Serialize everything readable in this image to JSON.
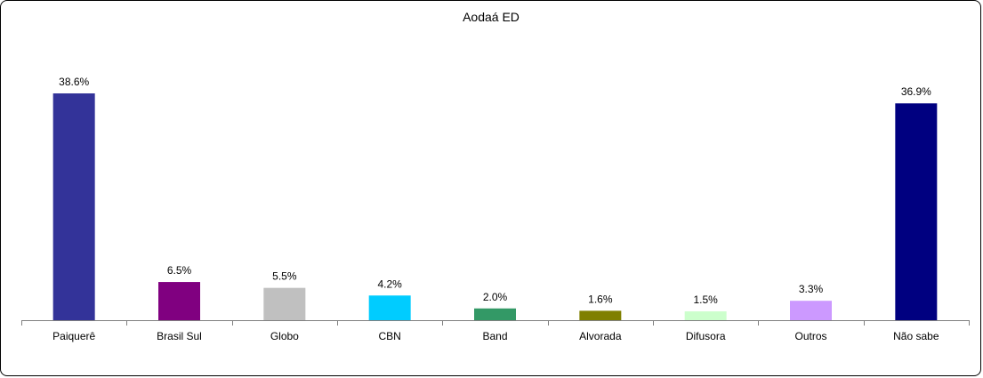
{
  "chart_data": {
    "type": "bar",
    "title": "Aodaá ED",
    "categories": [
      "Paiquerê",
      "Brasil Sul",
      "Globo",
      "CBN",
      "Band",
      "Alvorada",
      "Difusora",
      "Outros",
      "Não sabe"
    ],
    "values": [
      38.6,
      6.5,
      5.5,
      4.2,
      2.0,
      1.6,
      1.5,
      3.3,
      36.9
    ],
    "value_labels": [
      "38.6%",
      "6.5%",
      "5.5%",
      "4.2%",
      "2.0%",
      "1.6%",
      "1.5%",
      "3.3%",
      "36.9%"
    ],
    "colors": [
      "#333399",
      "#800080",
      "#C0C0C0",
      "#00CCFF",
      "#339966",
      "#808000",
      "#CCFFCC",
      "#CC99FF",
      "#000080"
    ],
    "ylim": [
      0,
      40
    ],
    "grid": false,
    "legend": "none"
  }
}
